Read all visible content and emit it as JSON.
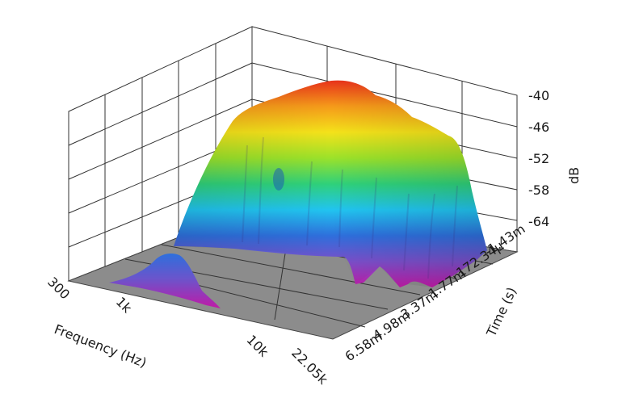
{
  "chart_data": {
    "type": "surface3d",
    "title": "",
    "axes": {
      "frequency": {
        "label": "Frequency (Hz)",
        "scale": "log",
        "range": [
          300,
          22050
        ],
        "ticks": [
          "300",
          "1k",
          "10k",
          "22.05k"
        ]
      },
      "time": {
        "label": "Time (s)",
        "ticks": [
          "-1.43m",
          "172.34µ",
          "1.77m",
          "3.37m",
          "4.98m",
          "6.58m"
        ]
      },
      "level": {
        "label": "dB",
        "ticks": [
          "-40",
          "-46",
          "-52",
          "-58",
          "-64"
        ],
        "range": [
          -70,
          -38
        ]
      }
    },
    "colormap": [
      "#c01aa6",
      "#7a4fc9",
      "#2e6fdc",
      "#21c4f0",
      "#2fd17a",
      "#9be22a",
      "#f4e21a",
      "#f59a1a",
      "#e8321a"
    ],
    "floor_color": "#8c8c8c",
    "grid": true,
    "features": [
      {
        "name": "main-plateau",
        "freq_range_hz": [
          1500,
          22050
        ],
        "peak_db": -39
      },
      {
        "name": "low-hump",
        "freq_hz": 1000,
        "peak_db": -64
      }
    ]
  }
}
